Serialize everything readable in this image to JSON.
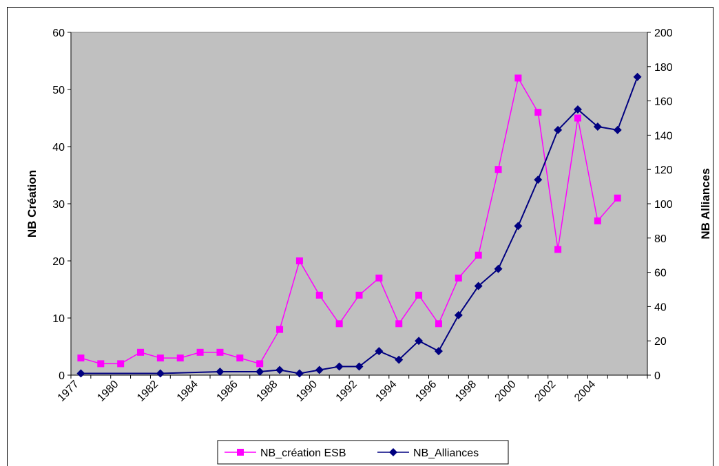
{
  "chart_data": {
    "type": "line",
    "title": "",
    "x_tick_labels": [
      "1977",
      "1980",
      "1982",
      "1984",
      "1986",
      "1988",
      "1990",
      "1992",
      "1994",
      "1996",
      "1998",
      "2000",
      "2002",
      "2004"
    ],
    "y_left": {
      "label": "NB Création",
      "lim": [
        0,
        60
      ],
      "ticks": [
        "0",
        "10",
        "20",
        "30",
        "40",
        "50",
        "60"
      ]
    },
    "y_right": {
      "label": "NB Alliances",
      "lim": [
        0,
        200
      ],
      "ticks": [
        "0",
        "20",
        "40",
        "60",
        "80",
        "100",
        "120",
        "140",
        "160",
        "180",
        "200"
      ]
    },
    "plot_background": "#c0c0c0",
    "gridlines": false,
    "legend_position": "bottom",
    "series": [
      {
        "name": "NB_création ESB",
        "axis": "left",
        "color": "#ff00ff",
        "marker": "square",
        "x": [
          1977,
          1978,
          1979,
          1980,
          1981,
          1982,
          1983,
          1984,
          1985,
          1986,
          1987,
          1988,
          1989,
          1990,
          1991,
          1992,
          1993,
          1994,
          1995,
          1996,
          1997,
          1998,
          1999,
          2000,
          2001,
          2002,
          2003,
          2004,
          2005
        ],
        "values": [
          3,
          2,
          2,
          4,
          3,
          3,
          4,
          4,
          3,
          2,
          8,
          20,
          14,
          9,
          14,
          17,
          9,
          14,
          9,
          17,
          21,
          36,
          52,
          46,
          22,
          45,
          27,
          31,
          null
        ]
      },
      {
        "name": "NB_Alliances",
        "axis": "right",
        "color": "#000080",
        "marker": "diamond",
        "x": [
          1977,
          1978,
          1979,
          1980,
          1981,
          1982,
          1983,
          1984,
          1985,
          1986,
          1987,
          1988,
          1989,
          1990,
          1991,
          1992,
          1993,
          1994,
          1995,
          1996,
          1997,
          1998,
          1999,
          2000,
          2001,
          2002,
          2003,
          2004,
          2005
        ],
        "values": [
          1,
          null,
          null,
          null,
          1,
          null,
          null,
          2,
          null,
          2,
          3,
          1,
          3,
          5,
          5,
          14,
          9,
          20,
          14,
          35,
          52,
          62,
          87,
          114,
          143,
          155,
          145,
          143,
          174
        ]
      }
    ]
  }
}
